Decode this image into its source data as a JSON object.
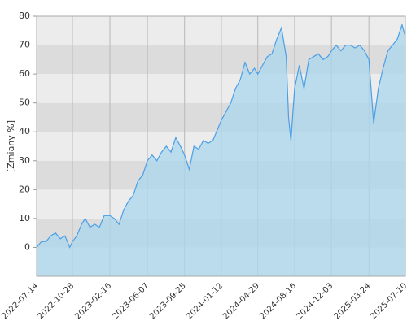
{
  "chart_data": {
    "type": "area",
    "y_label": "[Zmiany %]",
    "x": [
      "2022-07-14",
      "2022-07-28",
      "2022-08-11",
      "2022-08-25",
      "2022-09-08",
      "2022-09-22",
      "2022-10-06",
      "2022-10-20",
      "2022-10-28",
      "2022-11-10",
      "2022-11-24",
      "2022-12-05",
      "2022-12-19",
      "2023-01-02",
      "2023-01-16",
      "2023-01-30",
      "2023-02-16",
      "2023-03-01",
      "2023-03-15",
      "2023-03-29",
      "2023-04-12",
      "2023-04-26",
      "2023-05-10",
      "2023-05-24",
      "2023-06-07",
      "2023-06-21",
      "2023-07-05",
      "2023-07-19",
      "2023-08-02",
      "2023-08-16",
      "2023-08-30",
      "2023-09-13",
      "2023-09-25",
      "2023-10-09",
      "2023-10-23",
      "2023-11-06",
      "2023-11-20",
      "2023-12-04",
      "2023-12-18",
      "2024-01-12",
      "2024-01-26",
      "2024-02-09",
      "2024-02-23",
      "2024-03-08",
      "2024-03-22",
      "2024-04-05",
      "2024-04-19",
      "2024-04-29",
      "2024-05-13",
      "2024-05-27",
      "2024-06-10",
      "2024-06-24",
      "2024-07-08",
      "2024-07-22",
      "2024-07-29",
      "2024-08-05",
      "2024-08-16",
      "2024-08-30",
      "2024-09-13",
      "2024-09-27",
      "2024-10-11",
      "2024-10-25",
      "2024-11-08",
      "2024-11-22",
      "2024-12-03",
      "2024-12-17",
      "2024-12-31",
      "2025-01-14",
      "2025-01-28",
      "2025-02-11",
      "2025-02-25",
      "2025-03-11",
      "2025-03-24",
      "2025-04-07",
      "2025-04-21",
      "2025-05-05",
      "2025-05-19",
      "2025-06-02",
      "2025-06-16",
      "2025-06-30",
      "2025-07-10"
    ],
    "values": [
      0,
      2,
      2,
      4,
      5,
      3,
      4,
      0,
      2,
      4,
      8,
      10,
      7,
      8,
      7,
      11,
      11,
      10,
      8,
      13,
      16,
      18,
      23,
      25,
      30,
      32,
      30,
      33,
      35,
      33,
      38,
      35,
      32,
      27,
      35,
      34,
      37,
      36,
      37,
      44,
      47,
      50,
      55,
      58,
      64,
      60,
      62,
      60,
      63,
      66,
      67,
      72,
      76,
      66,
      45,
      37,
      55,
      63,
      55,
      65,
      66,
      67,
      65,
      66,
      68,
      70,
      68,
      70,
      70,
      69,
      70,
      68,
      65,
      43,
      55,
      62,
      68,
      70,
      72,
      77,
      73
    ],
    "color": "#4a9fe8",
    "fill": "#a9d7ec",
    "ylim": [
      -10,
      80
    ],
    "yticks": [
      0,
      10,
      20,
      30,
      40,
      50,
      60,
      70,
      80
    ],
    "xlim": [
      "2022-07-14",
      "2025-07-10"
    ],
    "xticks": [
      "2022-07-14",
      "2022-10-28",
      "2023-02-16",
      "2023-06-07",
      "2023-09-25",
      "2024-01-12",
      "2024-04-29",
      "2024-08-16",
      "2024-12-03",
      "2025-03-24",
      "2025-07-10"
    ]
  }
}
